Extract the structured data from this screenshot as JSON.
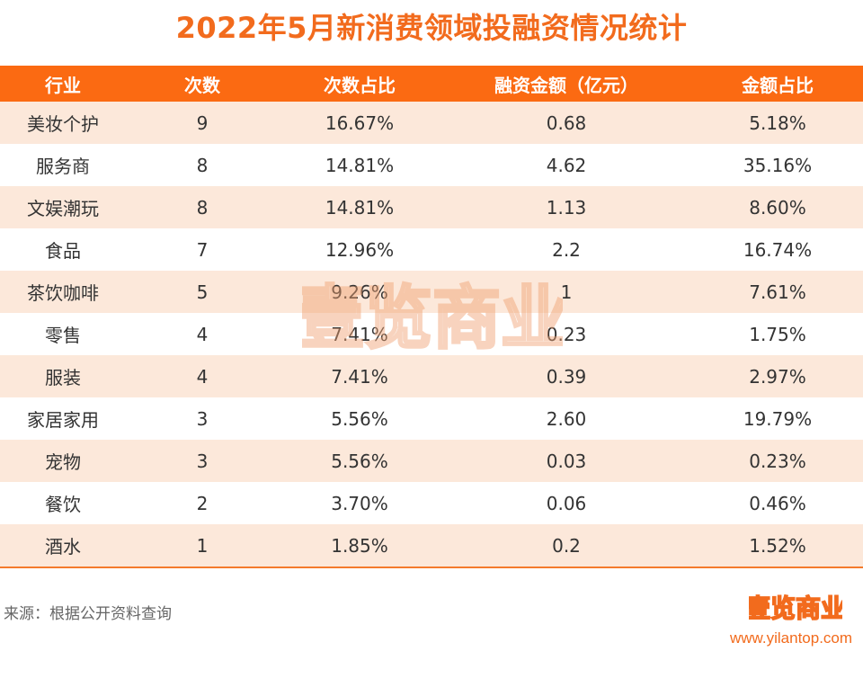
{
  "title": "2022年5月新消费领域投融资情况统计",
  "headers": [
    "行业",
    "次数",
    "次数占比",
    "融资金额（亿元）",
    "金额占比"
  ],
  "rows": [
    [
      "美妆个护",
      "9",
      "16.67%",
      "0.68",
      "5.18%"
    ],
    [
      "服务商",
      "8",
      "14.81%",
      "4.62",
      "35.16%"
    ],
    [
      "文娱潮玩",
      "8",
      "14.81%",
      "1.13",
      "8.60%"
    ],
    [
      "食品",
      "7",
      "12.96%",
      "2.2",
      "16.74%"
    ],
    [
      "茶饮咖啡",
      "5",
      "9.26%",
      "1",
      "7.61%"
    ],
    [
      "零售",
      "4",
      "7.41%",
      "0.23",
      "1.75%"
    ],
    [
      "服装",
      "4",
      "7.41%",
      "0.39",
      "2.97%"
    ],
    [
      "家居家用",
      "3",
      "5.56%",
      "2.60",
      "19.79%"
    ],
    [
      "宠物",
      "3",
      "5.56%",
      "0.03",
      "0.23%"
    ],
    [
      "餐饮",
      "2",
      "3.70%",
      "0.06",
      "0.46%"
    ],
    [
      "酒水",
      "1",
      "1.85%",
      "0.2",
      "1.52%"
    ]
  ],
  "footer": {
    "source": "来源：根据公开资料查询",
    "site": "www.yilantop.com",
    "logo_text": "壹览商业"
  },
  "colors": {
    "accent": "#f26b1d",
    "header_bg": "#fb6a12",
    "stripe": "#fce8da"
  }
}
